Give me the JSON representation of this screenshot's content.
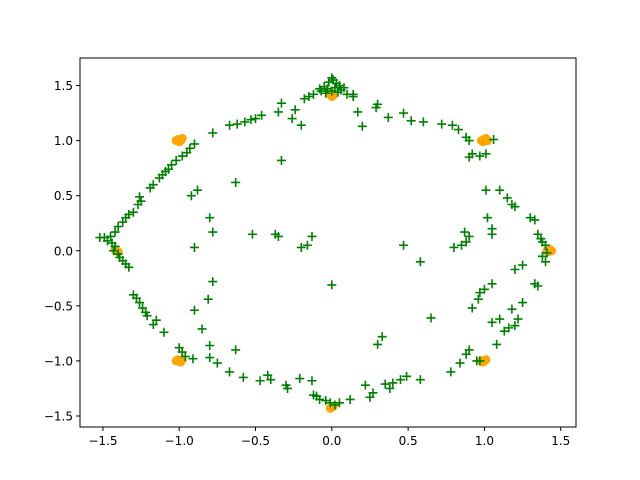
{
  "chart_data": {
    "type": "scatter",
    "title": "",
    "xlabel": "",
    "ylabel": "",
    "xlim": [
      -1.65,
      1.6
    ],
    "ylim": [
      -1.6,
      1.75
    ],
    "grid": false,
    "legend": "none",
    "x_ticks": [
      -1.5,
      -1.0,
      -0.5,
      0.0,
      0.5,
      1.0,
      1.5
    ],
    "x_tick_labels": [
      "−1.5",
      "−1.0",
      "−0.5",
      "0.0",
      "0.5",
      "1.0",
      "1.5"
    ],
    "y_ticks": [
      -1.5,
      -1.0,
      -0.5,
      0.0,
      0.5,
      1.0,
      1.5
    ],
    "y_tick_labels": [
      "−1.5",
      "−1.0",
      "−0.5",
      "0.0",
      "0.5",
      "1.0",
      "1.5"
    ],
    "series": [
      {
        "color": "#ffa500",
        "marker": "circle",
        "points": [
          [
            0.0,
            1.43
          ],
          [
            -0.01,
            1.42
          ],
          [
            0.01,
            1.41
          ],
          [
            0.0,
            1.4
          ],
          [
            -1.01,
            1.01
          ],
          [
            -0.99,
            1.0
          ],
          [
            -1.0,
            0.99
          ],
          [
            -1.02,
            1.0
          ],
          [
            -0.98,
            1.02
          ],
          [
            1.0,
            1.01
          ],
          [
            1.02,
            1.0
          ],
          [
            0.99,
            0.99
          ],
          [
            1.01,
            1.02
          ],
          [
            0.98,
            1.0
          ],
          [
            1.41,
            0.0
          ],
          [
            1.43,
            0.01
          ],
          [
            1.42,
            -0.01
          ],
          [
            1.44,
            0.0
          ],
          [
            -1.41,
            0.0
          ],
          [
            -1.42,
            0.01
          ],
          [
            -1.4,
            -0.01
          ],
          [
            -1.0,
            -1.0
          ],
          [
            -1.01,
            -0.99
          ],
          [
            -0.99,
            -1.01
          ],
          [
            -1.02,
            -1.0
          ],
          [
            -0.98,
            -0.99
          ],
          [
            1.0,
            -1.0
          ],
          [
            1.01,
            -0.99
          ],
          [
            0.99,
            -1.01
          ],
          [
            0.98,
            -1.0
          ],
          [
            0.0,
            -1.42
          ],
          [
            0.01,
            -1.41
          ],
          [
            -0.01,
            -1.43
          ]
        ]
      },
      {
        "color": "#008000",
        "marker": "plus",
        "points": [
          [
            0.0,
            1.57
          ],
          [
            0.01,
            1.55
          ],
          [
            -0.02,
            1.53
          ],
          [
            0.03,
            1.52
          ],
          [
            0.05,
            1.5
          ],
          [
            -0.05,
            1.49
          ],
          [
            0.08,
            1.48
          ],
          [
            -0.08,
            1.47
          ],
          [
            0.02,
            1.48
          ],
          [
            -0.03,
            1.47
          ],
          [
            0.06,
            1.46
          ],
          [
            -0.07,
            1.45
          ],
          [
            0.04,
            1.44
          ],
          [
            -0.04,
            1.43
          ],
          [
            0.0,
            1.45
          ],
          [
            -0.12,
            1.42
          ],
          [
            0.1,
            1.42
          ],
          [
            -0.15,
            1.4
          ],
          [
            -0.18,
            1.38
          ],
          [
            0.14,
            1.4
          ],
          [
            -0.33,
            1.34
          ],
          [
            -0.35,
            1.26
          ],
          [
            -0.24,
            1.28
          ],
          [
            -0.26,
            1.2
          ],
          [
            -0.2,
            1.14
          ],
          [
            -0.46,
            1.23
          ],
          [
            -0.5,
            1.2
          ],
          [
            -0.53,
            1.19
          ],
          [
            -0.57,
            1.17
          ],
          [
            -0.62,
            1.15
          ],
          [
            -0.67,
            1.14
          ],
          [
            -0.78,
            1.07
          ],
          [
            -0.9,
            0.97
          ],
          [
            -0.93,
            0.93
          ],
          [
            -0.95,
            0.89
          ],
          [
            -0.98,
            0.86
          ],
          [
            -1.02,
            0.82
          ],
          [
            -1.05,
            0.78
          ],
          [
            -1.07,
            0.74
          ],
          [
            -1.09,
            0.72
          ],
          [
            -1.11,
            0.69
          ],
          [
            -1.13,
            0.66
          ],
          [
            -1.17,
            0.6
          ],
          [
            -1.19,
            0.57
          ],
          [
            -1.26,
            0.49
          ],
          [
            -1.25,
            0.45
          ],
          [
            -1.27,
            0.42
          ],
          [
            -1.3,
            0.35
          ],
          [
            -1.33,
            0.33
          ],
          [
            -1.35,
            0.3
          ],
          [
            -1.37,
            0.26
          ],
          [
            -1.4,
            0.22
          ],
          [
            -1.42,
            0.17
          ],
          [
            -1.45,
            0.13
          ],
          [
            -1.49,
            0.12
          ],
          [
            -1.52,
            0.12
          ],
          [
            -1.47,
            0.09
          ],
          [
            -1.44,
            0.07
          ],
          [
            -1.42,
            0.04
          ],
          [
            -1.43,
            0.0
          ],
          [
            -1.4,
            -0.03
          ],
          [
            -1.39,
            -0.06
          ],
          [
            -1.37,
            -0.09
          ],
          [
            -1.35,
            -0.12
          ],
          [
            -1.33,
            -0.15
          ],
          [
            -1.3,
            -0.4
          ],
          [
            -1.28,
            -0.43
          ],
          [
            -1.26,
            -0.47
          ],
          [
            -1.24,
            -0.52
          ],
          [
            -1.22,
            -0.56
          ],
          [
            -1.21,
            -0.59
          ],
          [
            -1.15,
            -0.63
          ],
          [
            -1.17,
            -0.67
          ],
          [
            -1.1,
            -0.74
          ],
          [
            -1.0,
            -0.88
          ],
          [
            -0.98,
            -0.92
          ],
          [
            -0.96,
            -0.96
          ],
          [
            -0.91,
            -0.98
          ],
          [
            -0.8,
            -0.97
          ],
          [
            -0.75,
            -1.02
          ],
          [
            -0.67,
            -1.1
          ],
          [
            -0.58,
            -1.15
          ],
          [
            -0.47,
            -1.18
          ],
          [
            -0.42,
            -1.13
          ],
          [
            -0.4,
            -1.17
          ],
          [
            -0.3,
            -1.22
          ],
          [
            -0.29,
            -1.25
          ],
          [
            -0.21,
            -1.16
          ],
          [
            -0.13,
            -1.18
          ],
          [
            -0.12,
            -1.31
          ],
          [
            -0.1,
            -1.32
          ],
          [
            -0.08,
            -1.35
          ],
          [
            -0.04,
            -1.36
          ],
          [
            -0.01,
            -1.38
          ],
          [
            0.02,
            -1.4
          ],
          [
            0.05,
            -1.38
          ],
          [
            0.12,
            -1.35
          ],
          [
            0.22,
            -1.22
          ],
          [
            0.25,
            -1.33
          ],
          [
            0.27,
            -1.29
          ],
          [
            0.35,
            -1.21
          ],
          [
            0.38,
            -1.25
          ],
          [
            0.4,
            -1.2
          ],
          [
            0.45,
            -1.17
          ],
          [
            0.49,
            -1.14
          ],
          [
            0.58,
            -1.17
          ],
          [
            0.78,
            -1.1
          ],
          [
            0.84,
            -1.02
          ],
          [
            0.88,
            -0.94
          ],
          [
            0.9,
            -0.9
          ],
          [
            0.95,
            -1.0
          ],
          [
            0.97,
            -1.0
          ],
          [
            1.08,
            -0.85
          ],
          [
            1.05,
            -0.65
          ],
          [
            1.1,
            -0.62
          ],
          [
            1.13,
            -0.73
          ],
          [
            1.16,
            -0.7
          ],
          [
            1.18,
            -0.53
          ],
          [
            1.2,
            -0.68
          ],
          [
            1.22,
            -0.62
          ],
          [
            1.25,
            -0.47
          ],
          [
            1.2,
            -0.17
          ],
          [
            1.25,
            -0.13
          ],
          [
            1.33,
            -0.3
          ],
          [
            1.35,
            -0.32
          ],
          [
            1.38,
            -0.05
          ],
          [
            1.41,
            -0.02
          ],
          [
            1.4,
            -0.1
          ],
          [
            1.4,
            0.05
          ],
          [
            1.38,
            0.08
          ],
          [
            1.37,
            0.11
          ],
          [
            1.35,
            0.15
          ],
          [
            1.33,
            0.28
          ],
          [
            1.3,
            0.3
          ],
          [
            1.2,
            0.4
          ],
          [
            1.18,
            0.42
          ],
          [
            1.15,
            0.48
          ],
          [
            1.1,
            0.55
          ],
          [
            1.02,
            0.3
          ],
          [
            1.05,
            0.2
          ],
          [
            1.05,
            0.15
          ],
          [
            0.9,
            0.13
          ],
          [
            0.88,
            0.08
          ],
          [
            0.85,
            0.05
          ],
          [
            0.8,
            0.03
          ],
          [
            0.9,
            0.85
          ],
          [
            0.92,
            0.88
          ],
          [
            0.97,
            0.86
          ],
          [
            1.01,
            0.88
          ],
          [
            1.06,
            1.01
          ],
          [
            0.9,
            1.0
          ],
          [
            0.88,
            1.03
          ],
          [
            0.83,
            1.1
          ],
          [
            0.79,
            1.14
          ],
          [
            0.72,
            1.15
          ],
          [
            0.6,
            1.17
          ],
          [
            0.52,
            1.18
          ],
          [
            0.47,
            1.25
          ],
          [
            0.37,
            1.21
          ],
          [
            0.3,
            1.33
          ],
          [
            0.29,
            1.3
          ],
          [
            0.2,
            1.13
          ],
          [
            0.17,
            1.26
          ],
          [
            0.14,
            1.42
          ],
          [
            -0.33,
            0.82
          ],
          [
            -0.37,
            0.15
          ],
          [
            -0.35,
            0.13
          ],
          [
            -0.2,
            0.03
          ],
          [
            -0.16,
            0.05
          ],
          [
            -0.13,
            0.13
          ],
          [
            0.0,
            -0.31
          ],
          [
            -0.8,
            0.3
          ],
          [
            -0.78,
            0.17
          ],
          [
            -0.52,
            0.15
          ],
          [
            -0.63,
            0.62
          ],
          [
            -0.92,
            0.5
          ],
          [
            -0.88,
            0.55
          ],
          [
            -0.9,
            0.03
          ],
          [
            -0.78,
            -0.28
          ],
          [
            -0.81,
            -0.44
          ],
          [
            -0.9,
            -0.54
          ],
          [
            -0.85,
            -0.71
          ],
          [
            -0.8,
            -0.86
          ],
          [
            -0.63,
            -0.9
          ],
          [
            0.3,
            -0.85
          ],
          [
            0.33,
            -0.78
          ],
          [
            0.47,
            0.05
          ],
          [
            0.58,
            -0.1
          ],
          [
            0.65,
            -0.61
          ],
          [
            0.87,
            0.17
          ],
          [
            0.92,
            -0.52
          ],
          [
            0.96,
            -0.44
          ],
          [
            0.97,
            -0.38
          ],
          [
            1.0,
            -0.35
          ],
          [
            1.05,
            -0.3
          ],
          [
            1.01,
            0.55
          ]
        ]
      }
    ]
  }
}
